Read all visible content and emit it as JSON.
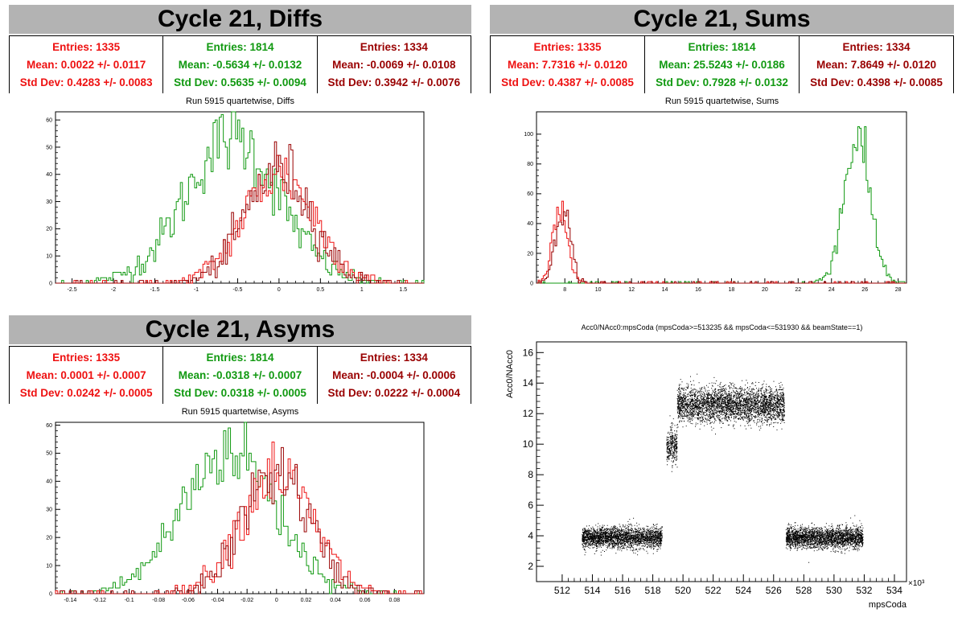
{
  "panels": {
    "diffs": {
      "title": "Cycle 21, Diffs",
      "subtitle": "Run 5915 quartetwise, Diffs",
      "stats": [
        {
          "entries": "Entries: 1335",
          "mean": "Mean: 0.0022 +/- 0.0117",
          "std": "Std Dev: 0.4283 +/- 0.0083"
        },
        {
          "entries": "Entries: 1814",
          "mean": "Mean: -0.5634 +/- 0.0132",
          "std": "Std Dev: 0.5635 +/- 0.0094"
        },
        {
          "entries": "Entries: 1334",
          "mean": "Mean: -0.0069 +/- 0.0108",
          "std": "Std Dev: 0.3942 +/- 0.0076"
        }
      ]
    },
    "sums": {
      "title": "Cycle 21, Sums",
      "subtitle": "Run 5915 quartetwise, Sums",
      "stats": [
        {
          "entries": "Entries: 1335",
          "mean": "Mean: 7.7316 +/- 0.0120",
          "std": "Std Dev: 0.4387 +/- 0.0085"
        },
        {
          "entries": "Entries: 1814",
          "mean": "Mean: 25.5243 +/- 0.0186",
          "std": "Std Dev: 0.7928 +/- 0.0132"
        },
        {
          "entries": "Entries: 1334",
          "mean": "Mean: 7.8649 +/- 0.0120",
          "std": "Std Dev: 0.4398 +/- 0.0085"
        }
      ]
    },
    "asyms": {
      "title": "Cycle 21, Asyms",
      "subtitle": "Run 5915 quartetwise, Asyms",
      "stats": [
        {
          "entries": "Entries: 1335",
          "mean": "Mean: 0.0001 +/- 0.0007",
          "std": "Std Dev: 0.0242 +/- 0.0005"
        },
        {
          "entries": "Entries: 1814",
          "mean": "Mean: -0.0318 +/- 0.0007",
          "std": "Std Dev: 0.0318 +/- 0.0005"
        },
        {
          "entries": "Entries: 1334",
          "mean": "Mean: -0.0004 +/- 0.0006",
          "std": "Std Dev: 0.0222 +/- 0.0004"
        }
      ]
    },
    "scatter": {
      "subtitle": "Acc0/NAcc0:mpsCoda (mpsCoda>=513235 && mpsCoda<=531930 && beamState==1)"
    }
  },
  "colors": {
    "red": "#ee1111",
    "green": "#119911",
    "dark": "#990000"
  },
  "chart_data": [
    {
      "type": "histogram",
      "title": "Run 5915 quartetwise, Diffs",
      "xlim": [
        -2.7,
        1.75
      ],
      "ylim": [
        0,
        63
      ],
      "xticks": [
        -2.5,
        -2,
        -1.5,
        -1,
        -0.5,
        0,
        0.5,
        1,
        1.5
      ],
      "xtick_labels": [
        "-2.5",
        "-2",
        "-1.5",
        "-1",
        "-0.5",
        "0",
        "0.5",
        "1",
        "1.5"
      ],
      "yticks": [
        0,
        10,
        20,
        30,
        40,
        50,
        60
      ],
      "ytick_labels": [
        "0",
        "10",
        "20",
        "30",
        "40",
        "50",
        "60"
      ],
      "series": [
        {
          "color": "red",
          "mean": 0.0022,
          "std": 0.4283,
          "entries": 1335,
          "peak": 46
        },
        {
          "color": "green",
          "mean": -0.5634,
          "std": 0.5635,
          "entries": 1814,
          "peak": 61
        },
        {
          "color": "dark",
          "mean": -0.0069,
          "std": 0.3942,
          "entries": 1334,
          "peak": 48
        }
      ]
    },
    {
      "type": "histogram",
      "title": "Run 5915 quartetwise, Sums",
      "xlim": [
        6.3,
        28.5
      ],
      "ylim": [
        0,
        115
      ],
      "xticks": [
        8,
        10,
        12,
        14,
        16,
        18,
        20,
        22,
        24,
        26,
        28
      ],
      "xtick_labels": [
        "8",
        "10",
        "12",
        "14",
        "16",
        "18",
        "20",
        "22",
        "24",
        "26",
        "28"
      ],
      "yticks": [
        0,
        20,
        40,
        60,
        80,
        100
      ],
      "ytick_labels": [
        "0",
        "20",
        "40",
        "60",
        "80",
        "100"
      ],
      "series": [
        {
          "color": "red",
          "mean": 7.7316,
          "std": 0.4387,
          "entries": 1335,
          "peak": 55
        },
        {
          "color": "green",
          "mean": 25.5243,
          "std": 0.7928,
          "entries": 1814,
          "peak": 110
        },
        {
          "color": "dark",
          "mean": 7.8649,
          "std": 0.4398,
          "entries": 1334,
          "peak": 60
        }
      ]
    },
    {
      "type": "histogram",
      "title": "Run 5915 quartetwise, Asyms",
      "xlim": [
        -0.15,
        0.1
      ],
      "ylim": [
        0,
        61
      ],
      "xticks": [
        -0.14,
        -0.12,
        -0.1,
        -0.08,
        -0.06,
        -0.04,
        -0.02,
        0,
        0.02,
        0.04,
        0.06,
        0.08
      ],
      "xtick_labels": [
        "-0.14",
        "-0.12",
        "-0.1",
        "-0.08",
        "-0.06",
        "-0.04",
        "-0.02",
        "0",
        "0.02",
        "0.04",
        "0.06",
        "0.08"
      ],
      "yticks": [
        0,
        10,
        20,
        30,
        40,
        50,
        60
      ],
      "ytick_labels": [
        "0",
        "10",
        "20",
        "30",
        "40",
        "50",
        "60"
      ],
      "series": [
        {
          "color": "red",
          "mean": 0.0001,
          "std": 0.0242,
          "entries": 1335,
          "peak": 49
        },
        {
          "color": "green",
          "mean": -0.0318,
          "std": 0.0318,
          "entries": 1814,
          "peak": 58
        },
        {
          "color": "dark",
          "mean": -0.0004,
          "std": 0.0222,
          "entries": 1334,
          "peak": 50
        }
      ]
    },
    {
      "type": "scatter",
      "title": "Acc0/NAcc0:mpsCoda (mpsCoda>=513235 && mpsCoda<=531930 && beamState==1)",
      "xlabel": "mpsCoda",
      "ylabel": "Acc0/NAcc0",
      "x_multiplier": "×10³",
      "xlim": [
        510.3,
        534.8
      ],
      "ylim": [
        1,
        16.7
      ],
      "xticks": [
        512,
        514,
        516,
        518,
        520,
        522,
        524,
        526,
        528,
        530,
        532,
        534
      ],
      "xtick_labels": [
        "512",
        "514",
        "516",
        "518",
        "520",
        "522",
        "524",
        "526",
        "528",
        "530",
        "532",
        "534"
      ],
      "yticks": [
        2,
        4,
        6,
        8,
        10,
        12,
        14,
        16
      ],
      "ytick_labels": [
        "2",
        "4",
        "6",
        "8",
        "10",
        "12",
        "14",
        "16"
      ],
      "clusters": [
        {
          "x": [
            513.3,
            518.6
          ],
          "y_center": 3.9,
          "y_spread": 0.45,
          "count": 2600
        },
        {
          "x": [
            518.9,
            519.6
          ],
          "y_center": 9.9,
          "y_spread": 0.8,
          "count": 350
        },
        {
          "x": [
            519.6,
            526.7
          ],
          "y_center": 12.6,
          "y_spread": 0.75,
          "count": 3600
        },
        {
          "x": [
            526.8,
            531.9
          ],
          "y_center": 3.9,
          "y_spread": 0.45,
          "count": 2600
        }
      ]
    }
  ]
}
